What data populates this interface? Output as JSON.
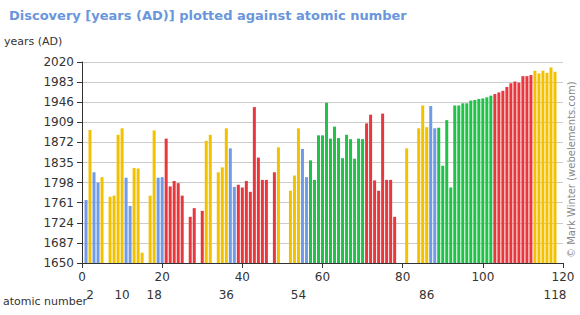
{
  "chart_data": {
    "type": "bar",
    "title": "Discovery [years (AD)] plotted against atomic number",
    "ylabel": "years (AD)",
    "xlabel": "atomic number",
    "credit": "© Mark Winter (webelements.com)",
    "x": [
      1,
      2,
      3,
      4,
      5,
      6,
      7,
      8,
      9,
      10,
      11,
      12,
      13,
      14,
      15,
      16,
      17,
      18,
      19,
      20,
      21,
      22,
      23,
      24,
      25,
      26,
      27,
      28,
      29,
      30,
      31,
      32,
      33,
      34,
      35,
      36,
      37,
      38,
      39,
      40,
      41,
      42,
      43,
      44,
      45,
      46,
      47,
      48,
      49,
      50,
      51,
      52,
      53,
      54,
      55,
      56,
      57,
      58,
      59,
      60,
      61,
      62,
      63,
      64,
      65,
      66,
      67,
      68,
      69,
      70,
      71,
      72,
      73,
      74,
      75,
      76,
      77,
      78,
      79,
      80,
      81,
      82,
      83,
      84,
      85,
      86,
      87,
      88,
      89,
      90,
      91,
      92,
      93,
      94,
      95,
      96,
      97,
      98,
      99,
      100,
      101,
      102,
      103,
      104,
      105,
      106,
      107,
      108,
      109,
      110,
      111,
      112,
      113,
      114,
      115,
      116,
      117,
      118
    ],
    "values": [
      1766,
      1895,
      1817,
      1798,
      1808,
      null,
      1772,
      1774,
      1886,
      1898,
      1807,
      1755,
      1825,
      1824,
      1669,
      null,
      1774,
      1894,
      1807,
      1808,
      1879,
      1791,
      1801,
      1797,
      1774,
      null,
      1735,
      1751,
      null,
      1746,
      1875,
      1886,
      null,
      1817,
      1826,
      1898,
      1861,
      1790,
      1794,
      1789,
      1801,
      1781,
      1937,
      1844,
      1803,
      1803,
      null,
      1817,
      1863,
      null,
      null,
      1783,
      1811,
      1898,
      1860,
      1808,
      1839,
      1803,
      1885,
      1885,
      1945,
      1879,
      1901,
      1880,
      1843,
      1886,
      1878,
      1842,
      1879,
      1878,
      1907,
      1923,
      1802,
      1783,
      1925,
      1803,
      1803,
      1735,
      null,
      null,
      1861,
      null,
      null,
      1898,
      1940,
      1900,
      1939,
      1898,
      1899,
      1829,
      1913,
      1789,
      1940,
      1940,
      1944,
      1944,
      1949,
      1950,
      1952,
      1953,
      1955,
      1958,
      1961,
      1964,
      1967,
      1974,
      1981,
      1984,
      1982,
      1994,
      1994,
      1996,
      2004,
      1999,
      2004,
      2000,
      2010,
      2002
    ],
    "colors": [
      "#6f9be8",
      "#f2c200",
      "#6f9be8",
      "#6f9be8",
      "#f2c200",
      "#f2c200",
      "#f2c200",
      "#f2c200",
      "#f2c200",
      "#f2c200",
      "#6f9be8",
      "#6f9be8",
      "#f2c200",
      "#f2c200",
      "#f2c200",
      "#f2c200",
      "#f2c200",
      "#f2c200",
      "#6f9be8",
      "#6f9be8",
      "#e8383d",
      "#e8383d",
      "#e8383d",
      "#e8383d",
      "#e8383d",
      "#e8383d",
      "#e8383d",
      "#e8383d",
      "#e8383d",
      "#e8383d",
      "#f2c200",
      "#f2c200",
      "#f2c200",
      "#f2c200",
      "#f2c200",
      "#f2c200",
      "#6f9be8",
      "#6f9be8",
      "#e8383d",
      "#e8383d",
      "#e8383d",
      "#e8383d",
      "#e8383d",
      "#e8383d",
      "#e8383d",
      "#e8383d",
      "#e8383d",
      "#e8383d",
      "#f2c200",
      "#f2c200",
      "#f2c200",
      "#f2c200",
      "#f2c200",
      "#f2c200",
      "#6f9be8",
      "#6f9be8",
      "#22c14a",
      "#22c14a",
      "#22c14a",
      "#22c14a",
      "#22c14a",
      "#22c14a",
      "#22c14a",
      "#22c14a",
      "#22c14a",
      "#22c14a",
      "#22c14a",
      "#22c14a",
      "#22c14a",
      "#22c14a",
      "#e8383d",
      "#e8383d",
      "#e8383d",
      "#e8383d",
      "#e8383d",
      "#e8383d",
      "#e8383d",
      "#e8383d",
      "#e8383d",
      "#e8383d",
      "#f2c200",
      "#f2c200",
      "#f2c200",
      "#f2c200",
      "#f2c200",
      "#f2c200",
      "#6f9be8",
      "#6f9be8",
      "#22c14a",
      "#22c14a",
      "#22c14a",
      "#22c14a",
      "#22c14a",
      "#22c14a",
      "#22c14a",
      "#22c14a",
      "#22c14a",
      "#22c14a",
      "#22c14a",
      "#22c14a",
      "#22c14a",
      "#22c14a",
      "#e8383d",
      "#e8383d",
      "#e8383d",
      "#e8383d",
      "#e8383d",
      "#e8383d",
      "#e8383d",
      "#e8383d",
      "#e8383d",
      "#e8383d",
      "#f2c200",
      "#f2c200",
      "#f2c200",
      "#f2c200",
      "#f2c200",
      "#f2c200"
    ],
    "xlim": [
      0,
      120
    ],
    "xticks": [
      0,
      20,
      40,
      60,
      80,
      100,
      120
    ],
    "x2ticks": [
      2,
      10,
      18,
      36,
      54,
      86,
      118
    ],
    "ylim": [
      1650,
      2020
    ],
    "yticks": [
      1650,
      1687,
      1724,
      1761,
      1798,
      1835,
      1872,
      1909,
      1946,
      1983,
      2020
    ],
    "grid": true
  }
}
